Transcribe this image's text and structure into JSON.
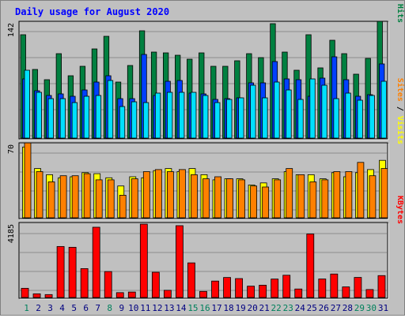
{
  "title": "Daily usage for August 2020",
  "colors": {
    "background": "#c0c0c0",
    "hits": "#008040",
    "files": "#0040ff",
    "pages": "#00e0ff",
    "visits": "#ffff00",
    "sites": "#ff8000",
    "kbytes": "#ff0000",
    "title": "#0000ff",
    "weekend_label": "#00805c",
    "weekday_label": "#000080"
  },
  "chart_data": [
    {
      "type": "bar",
      "name": "hits-files-pages",
      "legend": [
        "Pages",
        "Files",
        "Hits"
      ],
      "y_tick_label": "142",
      "ylim": [
        0,
        142
      ],
      "categories": [
        "1",
        "2",
        "3",
        "4",
        "5",
        "6",
        "7",
        "8",
        "9",
        "10",
        "11",
        "12",
        "13",
        "14",
        "15",
        "16",
        "17",
        "18",
        "19",
        "20",
        "21",
        "22",
        "23",
        "24",
        "25",
        "26",
        "27",
        "28",
        "29",
        "30",
        "31"
      ],
      "series": [
        {
          "name": "Hits",
          "values": [
            131,
            87,
            74,
            107,
            79,
            91,
            113,
            129,
            71,
            92,
            136,
            109,
            108,
            105,
            100,
            108,
            91,
            91,
            98,
            107,
            102,
            145,
            109,
            86,
            131,
            89,
            124,
            107,
            81,
            101,
            148
          ]
        },
        {
          "name": "Files",
          "values": [
            75,
            60,
            54,
            56,
            53,
            61,
            71,
            79,
            50,
            50,
            106,
            54,
            72,
            73,
            57,
            56,
            49,
            50,
            51,
            70,
            70,
            97,
            75,
            74,
            53,
            76,
            103,
            74,
            53,
            55,
            94
          ]
        },
        {
          "name": "Pages",
          "values": [
            86,
            58,
            50,
            50,
            45,
            53,
            54,
            73,
            40,
            46,
            45,
            57,
            58,
            58,
            58,
            54,
            45,
            49,
            51,
            67,
            51,
            71,
            61,
            49,
            75,
            67,
            50,
            57,
            48,
            54,
            72
          ]
        }
      ]
    },
    {
      "type": "bar",
      "name": "visits-sites",
      "legend": [
        "Sites",
        "Visits"
      ],
      "y_tick_label": "70",
      "ylim": [
        0,
        70
      ],
      "categories": [
        "1",
        "2",
        "3",
        "4",
        "5",
        "6",
        "7",
        "8",
        "9",
        "10",
        "11",
        "12",
        "13",
        "14",
        "15",
        "16",
        "17",
        "18",
        "19",
        "20",
        "21",
        "22",
        "23",
        "24",
        "25",
        "26",
        "27",
        "28",
        "29",
        "30",
        "31"
      ],
      "series": [
        {
          "name": "Visits",
          "values": [
            69,
            48,
            42,
            39,
            40,
            44,
            43,
            39,
            31,
            40,
            39,
            46,
            48,
            45,
            48,
            42,
            37,
            38,
            38,
            32,
            34,
            38,
            45,
            42,
            42,
            38,
            44,
            40,
            44,
            47,
            56
          ]
        },
        {
          "name": "Sites",
          "values": [
            73,
            45,
            35,
            41,
            41,
            43,
            37,
            37,
            22,
            38,
            45,
            47,
            45,
            47,
            42,
            38,
            40,
            38,
            37,
            31,
            30,
            37,
            48,
            42,
            35,
            37,
            45,
            45,
            54,
            41,
            48
          ]
        }
      ]
    },
    {
      "type": "bar",
      "name": "kbytes",
      "legend": [
        "KBytes"
      ],
      "y_tick_label": "4185",
      "ylim": [
        0,
        4185
      ],
      "categories": [
        "1",
        "2",
        "3",
        "4",
        "5",
        "6",
        "7",
        "8",
        "9",
        "10",
        "11",
        "12",
        "13",
        "14",
        "15",
        "16",
        "17",
        "18",
        "19",
        "20",
        "21",
        "22",
        "23",
        "24",
        "25",
        "26",
        "27",
        "28",
        "29",
        "30",
        "31"
      ],
      "series": [
        {
          "name": "KBytes",
          "values": [
            530,
            213,
            168,
            2940,
            2895,
            1665,
            4050,
            1495,
            280,
            314,
            4228,
            1455,
            415,
            4140,
            1995,
            351,
            947,
            1153,
            1090,
            653,
            707,
            1063,
            1283,
            490,
            3660,
            1067,
            1354,
            610,
            1157,
            459,
            1262
          ]
        }
      ]
    }
  ],
  "weekend_days": [
    1,
    8,
    15,
    16,
    22,
    23,
    29,
    30
  ]
}
